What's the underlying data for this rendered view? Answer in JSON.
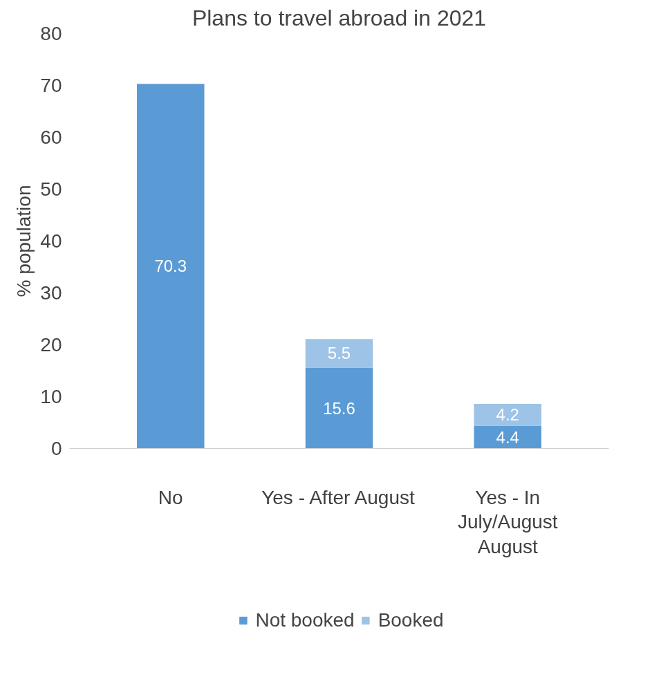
{
  "chart_data": {
    "type": "bar",
    "title": "Plans to travel abroad in 2021",
    "ylabel": "% population",
    "categories": [
      "No",
      "Yes - After August",
      "Yes - In\nJuly/August\nAugust"
    ],
    "stacked": true,
    "series": [
      {
        "name": "Not booked",
        "color": "#5b9bd5",
        "values": [
          70.3,
          15.6,
          4.4
        ]
      },
      {
        "name": "Booked",
        "color": "#9dc3e6",
        "values": [
          null,
          5.5,
          4.2
        ]
      }
    ],
    "ylim": [
      0,
      80
    ],
    "yticks": [
      0,
      10,
      20,
      30,
      40,
      50,
      60,
      70,
      80
    ],
    "data_labels": true,
    "grid": false,
    "legend": "bottom"
  }
}
